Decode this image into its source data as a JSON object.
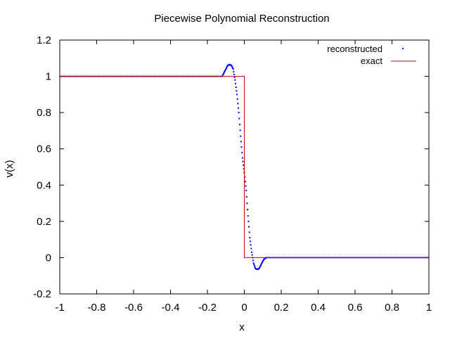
{
  "chart_data": {
    "type": "scatter",
    "title": "Piecewise Polynomial Reconstruction",
    "xlabel": "x",
    "ylabel": "v(x)",
    "xlim": [
      -1,
      1
    ],
    "ylim": [
      -0.2,
      1.2
    ],
    "x_ticks": [
      -1,
      -0.8,
      -0.6,
      -0.4,
      -0.2,
      0,
      0.2,
      0.4,
      0.6,
      0.8,
      1
    ],
    "x_tick_labels": [
      "-1",
      "-0.8",
      "-0.6",
      "-0.4",
      "-0.2",
      "0",
      "0.2",
      "0.4",
      "0.6",
      "0.8",
      "1"
    ],
    "y_ticks": [
      -0.2,
      0,
      0.2,
      0.4,
      0.6,
      0.8,
      1,
      1.2
    ],
    "y_tick_labels": [
      "-0.2",
      "0",
      "0.2",
      "0.4",
      "0.6",
      "0.8",
      "1",
      "1.2"
    ],
    "grid": false,
    "legend_position": "top-right",
    "series": [
      {
        "name": "reconstructed",
        "kind": "points",
        "color": "#0000ff",
        "x": [
          -0.12,
          -0.11,
          -0.1,
          -0.09,
          -0.08,
          -0.07,
          -0.06,
          -0.05,
          -0.04,
          -0.03,
          -0.02,
          -0.01,
          0.0,
          0.01,
          0.02,
          0.03,
          0.04,
          0.05,
          0.06,
          0.07,
          0.08,
          0.09,
          0.1,
          0.11,
          0.12
        ],
        "y": [
          1.0,
          1.02,
          1.04,
          1.06,
          1.065,
          1.06,
          1.04,
          0.98,
          0.9,
          0.8,
          0.67,
          0.55,
          0.47,
          0.37,
          0.23,
          0.11,
          0.03,
          -0.03,
          -0.06,
          -0.065,
          -0.06,
          -0.04,
          -0.02,
          -0.005,
          0.0
        ],
        "flat_left": {
          "x_from": -1,
          "x_to": -0.12,
          "y": 1.0
        },
        "flat_right": {
          "x_from": 0.12,
          "x_to": 1,
          "y": 0.0
        }
      },
      {
        "name": "exact",
        "kind": "line",
        "color": "#cc0000",
        "x": [
          -1,
          0,
          0,
          1
        ],
        "y": [
          1,
          1,
          0,
          0
        ]
      }
    ]
  }
}
